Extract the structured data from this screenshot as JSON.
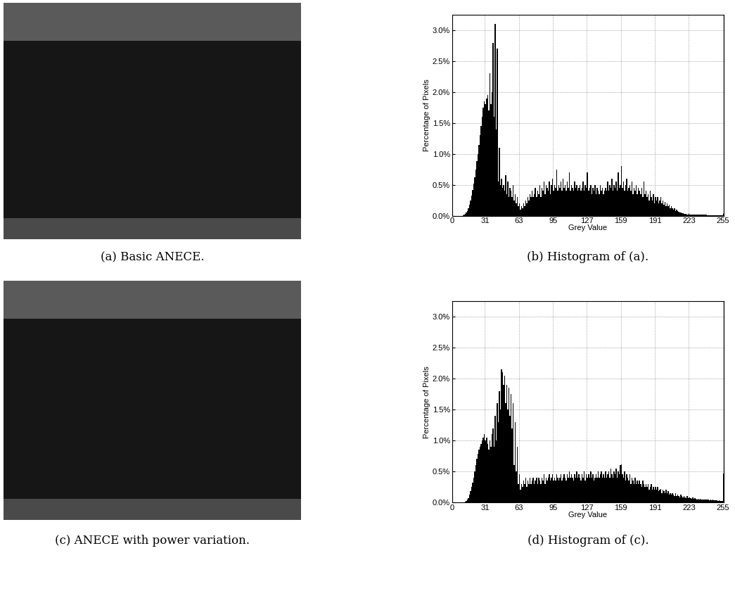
{
  "images": [
    {
      "caption": "(a) Basic ANECE."
    },
    {
      "caption": "(c) ANECE with power variation."
    }
  ],
  "chart_data": [
    {
      "type": "histogram",
      "caption": "(b) Histogram of (a).",
      "xlabel": "Grey Value",
      "ylabel": "Percentage of Pixels",
      "color": "#000000",
      "grid": true,
      "xlim": [
        0,
        256
      ],
      "xticks": [
        0,
        31,
        63,
        95,
        127,
        159,
        191,
        223,
        255
      ],
      "ylim": [
        0,
        3.25
      ],
      "yticks": [
        {
          "value": 0,
          "label": "0.0%"
        },
        {
          "value": 0.5,
          "label": "0.5%"
        },
        {
          "value": 1.0,
          "label": "1.0%"
        },
        {
          "value": 1.5,
          "label": "1.5%"
        },
        {
          "value": 2.0,
          "label": "2.0%"
        },
        {
          "value": 2.5,
          "label": "2.5%"
        },
        {
          "value": 3.0,
          "label": "3.0%"
        }
      ],
      "bins": [
        0,
        1,
        2,
        3,
        4,
        5,
        6,
        7,
        8,
        9,
        10,
        11,
        12,
        13,
        14,
        15,
        16,
        17,
        18,
        19,
        20,
        21,
        22,
        23,
        24,
        25,
        26,
        27,
        28,
        29,
        30,
        31,
        32,
        33,
        34,
        35,
        36,
        37,
        38,
        39,
        40,
        41,
        42,
        43,
        44,
        45,
        46,
        47,
        48,
        49,
        50,
        51,
        52,
        53,
        54,
        55,
        56,
        57,
        58,
        59,
        60,
        61,
        62,
        63,
        64,
        65,
        66,
        67,
        68,
        69,
        70,
        71,
        72,
        73,
        74,
        75,
        76,
        77,
        78,
        79,
        80,
        81,
        82,
        83,
        84,
        85,
        86,
        87,
        88,
        89,
        90,
        91,
        92,
        93,
        94,
        95,
        96,
        97,
        98,
        99,
        100,
        101,
        102,
        103,
        104,
        105,
        106,
        107,
        108,
        109,
        110,
        111,
        112,
        113,
        114,
        115,
        116,
        117,
        118,
        119,
        120,
        121,
        122,
        123,
        124,
        125,
        126,
        127,
        128,
        129,
        130,
        131,
        132,
        133,
        134,
        135,
        136,
        137,
        138,
        139,
        140,
        141,
        142,
        143,
        144,
        145,
        146,
        147,
        148,
        149,
        150,
        151,
        152,
        153,
        154,
        155,
        156,
        157,
        158,
        159,
        160,
        161,
        162,
        163,
        164,
        165,
        166,
        167,
        168,
        169,
        170,
        171,
        172,
        173,
        174,
        175,
        176,
        177,
        178,
        179,
        180,
        181,
        182,
        183,
        184,
        185,
        186,
        187,
        188,
        189,
        190,
        191,
        192,
        193,
        194,
        195,
        196,
        197,
        198,
        199,
        200,
        201,
        202,
        203,
        204,
        205,
        206,
        207,
        208,
        209,
        210,
        211,
        212,
        213,
        214,
        215,
        216,
        217,
        218,
        219,
        220,
        221,
        222,
        223,
        224,
        225,
        226,
        227,
        228,
        229,
        230,
        231,
        232,
        233,
        234,
        235,
        236,
        237,
        238,
        239,
        240,
        241,
        242,
        243,
        244,
        245,
        246,
        247,
        248,
        249,
        250,
        251,
        252,
        253,
        254,
        255,
        256
      ],
      "counts": [
        0,
        0,
        0,
        0,
        0,
        0,
        0,
        0,
        0,
        0,
        0.01,
        0.02,
        0.03,
        0.05,
        0.08,
        0.12,
        0.18,
        0.25,
        0.33,
        0.42,
        0.52,
        0.62,
        0.75,
        0.88,
        1.0,
        1.15,
        1.3,
        1.45,
        1.6,
        1.75,
        1.85,
        1.8,
        1.9,
        1.95,
        1.7,
        2.3,
        1.8,
        2.0,
        2.8,
        1.6,
        3.1,
        1.4,
        2.7,
        0.55,
        1.1,
        0.5,
        0.6,
        0.45,
        0.5,
        0.4,
        0.65,
        0.35,
        0.55,
        0.3,
        0.45,
        0.4,
        0.3,
        0.5,
        0.25,
        0.35,
        0.2,
        0.3,
        0.15,
        0.2,
        0.1,
        0.15,
        0.12,
        0.2,
        0.15,
        0.25,
        0.2,
        0.3,
        0.25,
        0.35,
        0.3,
        0.4,
        0.3,
        0.35,
        0.45,
        0.3,
        0.4,
        0.35,
        0.5,
        0.3,
        0.45,
        0.4,
        0.55,
        0.35,
        0.5,
        0.45,
        0.4,
        0.55,
        0.35,
        0.5,
        0.6,
        0.4,
        0.5,
        0.45,
        0.75,
        0.4,
        0.5,
        0.45,
        0.55,
        0.4,
        0.6,
        0.45,
        0.5,
        0.4,
        0.55,
        0.45,
        0.7,
        0.4,
        0.5,
        0.45,
        0.4,
        0.55,
        0.45,
        0.5,
        0.4,
        0.45,
        0.5,
        0.4,
        0.45,
        0.55,
        0.4,
        0.5,
        0.45,
        0.7,
        0.4,
        0.45,
        0.5,
        0.35,
        0.45,
        0.4,
        0.5,
        0.35,
        0.45,
        0.4,
        0.35,
        0.5,
        0.4,
        0.45,
        0.35,
        0.4,
        0.45,
        0.4,
        0.55,
        0.4,
        0.5,
        0.45,
        0.6,
        0.4,
        0.5,
        0.45,
        0.55,
        0.4,
        0.7,
        0.45,
        0.5,
        0.8,
        0.45,
        0.55,
        0.4,
        0.5,
        0.6,
        0.4,
        0.45,
        0.5,
        0.4,
        0.55,
        0.35,
        0.45,
        0.4,
        0.5,
        0.35,
        0.45,
        0.4,
        0.35,
        0.45,
        0.3,
        0.55,
        0.35,
        0.4,
        0.3,
        0.35,
        0.25,
        0.4,
        0.3,
        0.25,
        0.35,
        0.2,
        0.3,
        0.25,
        0.3,
        0.2,
        0.25,
        0.3,
        0.2,
        0.25,
        0.18,
        0.22,
        0.15,
        0.2,
        0.15,
        0.18,
        0.12,
        0.15,
        0.12,
        0.1,
        0.12,
        0.08,
        0.1,
        0.07,
        0.06,
        0.05,
        0.05,
        0.04,
        0.04,
        0.03,
        0.03,
        0.03,
        0.02,
        0.02,
        0.02,
        0.02,
        0.02,
        0.02,
        0.02,
        0.02,
        0.02,
        0.02,
        0.02,
        0.02,
        0.02,
        0.02,
        0.02,
        0.02,
        0.02,
        0.02,
        0.02,
        0.01,
        0.01,
        0.01,
        0.01,
        0.01,
        0.01,
        0.01,
        0.01,
        0.01,
        0.01,
        0.01,
        0.01,
        0.01,
        0.01,
        0.01,
        0.01
      ]
    },
    {
      "type": "histogram",
      "caption": "(d) Histogram of (c).",
      "xlabel": "Grey Value",
      "ylabel": "Percentage of Pixels",
      "color": "#000000",
      "grid": true,
      "xlim": [
        0,
        256
      ],
      "xticks": [
        0,
        31,
        63,
        95,
        127,
        159,
        191,
        223,
        255
      ],
      "ylim": [
        0,
        3.25
      ],
      "yticks": [
        {
          "value": 0,
          "label": "0.0%"
        },
        {
          "value": 0.5,
          "label": "0.5%"
        },
        {
          "value": 1.0,
          "label": "1.0%"
        },
        {
          "value": 1.5,
          "label": "1.5%"
        },
        {
          "value": 2.0,
          "label": "2.0%"
        },
        {
          "value": 2.5,
          "label": "2.5%"
        },
        {
          "value": 3.0,
          "label": "3.0%"
        }
      ],
      "bins": [
        0,
        1,
        2,
        3,
        4,
        5,
        6,
        7,
        8,
        9,
        10,
        11,
        12,
        13,
        14,
        15,
        16,
        17,
        18,
        19,
        20,
        21,
        22,
        23,
        24,
        25,
        26,
        27,
        28,
        29,
        30,
        31,
        32,
        33,
        34,
        35,
        36,
        37,
        38,
        39,
        40,
        41,
        42,
        43,
        44,
        45,
        46,
        47,
        48,
        49,
        50,
        51,
        52,
        53,
        54,
        55,
        56,
        57,
        58,
        59,
        60,
        61,
        62,
        63,
        64,
        65,
        66,
        67,
        68,
        69,
        70,
        71,
        72,
        73,
        74,
        75,
        76,
        77,
        78,
        79,
        80,
        81,
        82,
        83,
        84,
        85,
        86,
        87,
        88,
        89,
        90,
        91,
        92,
        93,
        94,
        95,
        96,
        97,
        98,
        99,
        100,
        101,
        102,
        103,
        104,
        105,
        106,
        107,
        108,
        109,
        110,
        111,
        112,
        113,
        114,
        115,
        116,
        117,
        118,
        119,
        120,
        121,
        122,
        123,
        124,
        125,
        126,
        127,
        128,
        129,
        130,
        131,
        132,
        133,
        134,
        135,
        136,
        137,
        138,
        139,
        140,
        141,
        142,
        143,
        144,
        145,
        146,
        147,
        148,
        149,
        150,
        151,
        152,
        153,
        154,
        155,
        156,
        157,
        158,
        159,
        160,
        161,
        162,
        163,
        164,
        165,
        166,
        167,
        168,
        169,
        170,
        171,
        172,
        173,
        174,
        175,
        176,
        177,
        178,
        179,
        180,
        181,
        182,
        183,
        184,
        185,
        186,
        187,
        188,
        189,
        190,
        191,
        192,
        193,
        194,
        195,
        196,
        197,
        198,
        199,
        200,
        201,
        202,
        203,
        204,
        205,
        206,
        207,
        208,
        209,
        210,
        211,
        212,
        213,
        214,
        215,
        216,
        217,
        218,
        219,
        220,
        221,
        222,
        223,
        224,
        225,
        226,
        227,
        228,
        229,
        230,
        231,
        232,
        233,
        234,
        235,
        236,
        237,
        238,
        239,
        240,
        241,
        242,
        243,
        244,
        245,
        246,
        247,
        248,
        249,
        250,
        251,
        252,
        253,
        254,
        255,
        256
      ],
      "counts": [
        0,
        0,
        0,
        0,
        0,
        0,
        0,
        0,
        0,
        0,
        0,
        0,
        0.01,
        0.02,
        0.04,
        0.07,
        0.12,
        0.18,
        0.25,
        0.32,
        0.4,
        0.5,
        0.6,
        0.7,
        0.78,
        0.85,
        0.9,
        0.95,
        1.0,
        1.05,
        1.1,
        1.0,
        1.05,
        0.95,
        0.85,
        1.0,
        0.9,
        1.1,
        1.2,
        0.9,
        1.4,
        1.0,
        1.6,
        1.3,
        1.8,
        1.5,
        2.15,
        2.1,
        1.9,
        2.05,
        1.6,
        1.9,
        1.5,
        1.85,
        1.4,
        1.75,
        1.2,
        1.6,
        0.6,
        1.3,
        0.5,
        0.9,
        0.3,
        0.45,
        0.2,
        0.3,
        0.25,
        0.35,
        0.3,
        0.4,
        0.25,
        0.35,
        0.3,
        0.4,
        0.3,
        0.35,
        0.4,
        0.3,
        0.35,
        0.4,
        0.3,
        0.4,
        0.35,
        0.3,
        0.4,
        0.35,
        0.45,
        0.3,
        0.4,
        0.35,
        0.4,
        0.45,
        0.35,
        0.4,
        0.45,
        0.35,
        0.4,
        0.35,
        0.45,
        0.4,
        0.35,
        0.4,
        0.45,
        0.35,
        0.4,
        0.45,
        0.4,
        0.35,
        0.45,
        0.4,
        0.5,
        0.4,
        0.45,
        0.4,
        0.35,
        0.45,
        0.4,
        0.5,
        0.4,
        0.45,
        0.4,
        0.35,
        0.45,
        0.4,
        0.5,
        0.35,
        0.45,
        0.4,
        0.45,
        0.4,
        0.5,
        0.4,
        0.45,
        0.35,
        0.4,
        0.45,
        0.4,
        0.5,
        0.4,
        0.45,
        0.5,
        0.4,
        0.45,
        0.4,
        0.5,
        0.4,
        0.45,
        0.5,
        0.4,
        0.55,
        0.45,
        0.4,
        0.5,
        0.45,
        0.55,
        0.4,
        0.5,
        0.45,
        0.6,
        0.62,
        0.45,
        0.4,
        0.5,
        0.35,
        0.45,
        0.4,
        0.35,
        0.45,
        0.3,
        0.4,
        0.35,
        0.3,
        0.4,
        0.3,
        0.35,
        0.3,
        0.35,
        0.3,
        0.25,
        0.35,
        0.3,
        0.25,
        0.3,
        0.25,
        0.3,
        0.2,
        0.25,
        0.3,
        0.2,
        0.25,
        0.2,
        0.25,
        0.2,
        0.25,
        0.18,
        0.2,
        0.22,
        0.15,
        0.2,
        0.18,
        0.15,
        0.2,
        0.15,
        0.18,
        0.12,
        0.15,
        0.12,
        0.15,
        0.12,
        0.1,
        0.15,
        0.1,
        0.12,
        0.1,
        0.08,
        0.12,
        0.1,
        0.08,
        0.1,
        0.08,
        0.07,
        0.1,
        0.07,
        0.08,
        0.07,
        0.06,
        0.08,
        0.06,
        0.07,
        0.06,
        0.05,
        0.06,
        0.05,
        0.06,
        0.05,
        0.04,
        0.05,
        0.04,
        0.05,
        0.04,
        0.04,
        0.04,
        0.03,
        0.04,
        0.03,
        0.04,
        0.03,
        0.03,
        0.03,
        0.03,
        0.02,
        0.03,
        0.02,
        0.02,
        0.02,
        0.47
      ]
    }
  ]
}
